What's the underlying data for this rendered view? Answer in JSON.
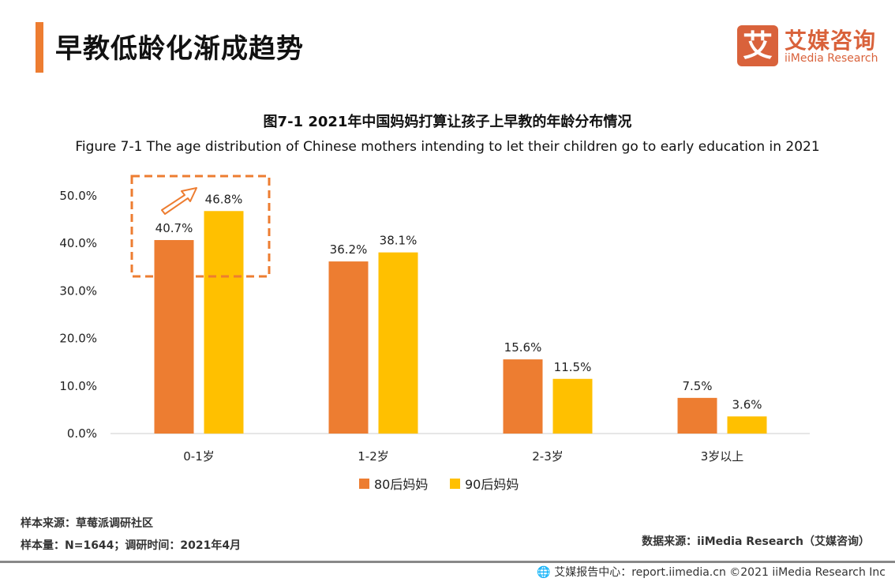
{
  "header": {
    "title": "早教低龄化渐成趋势",
    "accent_color": "#ED7D31"
  },
  "logo": {
    "mark": "艾",
    "cn": "艾媒咨询",
    "en": "iiMedia Research",
    "color": "#D9623B"
  },
  "chart_data": {
    "type": "bar",
    "title": "图7-1 2021年中国妈妈打算让孩子上早教的年龄分布情况",
    "subtitle": "Figure 7-1 The age distribution of Chinese mothers intending to let their children go to early education in 2021",
    "categories": [
      "0-1岁",
      "1-2岁",
      "2-3岁",
      "3岁以上"
    ],
    "series": [
      {
        "name": "80后妈妈",
        "color": "#ED7D31",
        "values": [
          40.7,
          36.2,
          15.6,
          7.5
        ]
      },
      {
        "name": "90后妈妈",
        "color": "#FFC000",
        "values": [
          46.8,
          38.1,
          11.5,
          3.6
        ]
      }
    ],
    "ylim": [
      0,
      50
    ],
    "yticks": [
      "0.0%",
      "10.0%",
      "20.0%",
      "30.0%",
      "40.0%",
      "50.0%"
    ],
    "grid": false,
    "legend": "bottom",
    "annotation": "dashed box with upward arrow highlighting 0-1岁 increase"
  },
  "footer": {
    "sample_source": "样本来源：草莓派调研社区",
    "sample_size": "样本量：N=1644；调研时间：2021年4月",
    "data_source": "数据来源：iiMedia Research（艾媒咨询）",
    "copyright": "艾媒报告中心：report.iimedia.cn  ©2021  iiMedia Research Inc"
  }
}
